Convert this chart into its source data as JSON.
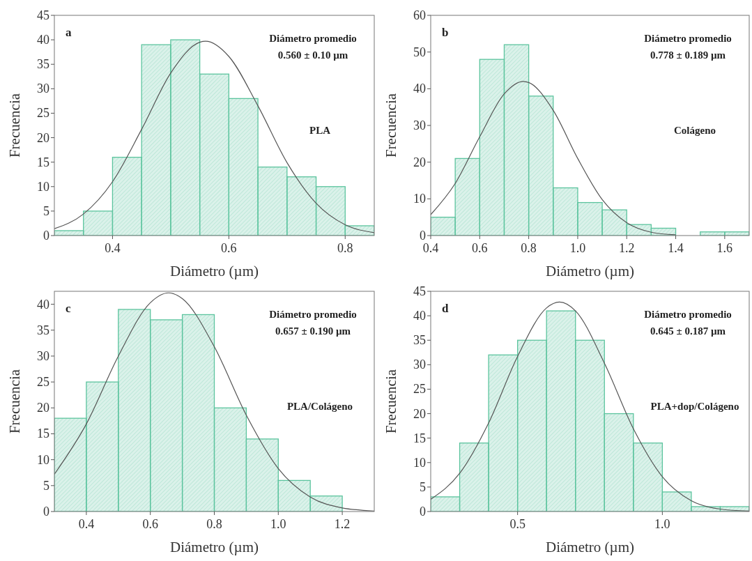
{
  "chart_data": [
    {
      "type": "histogram",
      "xlabel": "Diámetro (µm)",
      "ylabel": "Frecuencia",
      "color": "#5cc49e",
      "bins": [
        0.3,
        0.35,
        0.4,
        0.45,
        0.5,
        0.55,
        0.6,
        0.65,
        0.7,
        0.75,
        0.8,
        0.85
      ],
      "values": [
        1,
        5,
        16,
        39,
        40,
        33,
        28,
        14,
        12,
        10,
        2
      ],
      "xlim": [
        0.3,
        0.85
      ],
      "xticks": [
        0.4,
        0.6,
        0.8
      ],
      "ylim": [
        0,
        45
      ],
      "yticks": [
        0,
        5,
        10,
        15,
        20,
        25,
        30,
        35,
        40,
        45
      ],
      "annotations": [
        "a",
        "Diámetro promedio",
        "0.560 ± 0.10 µm",
        "PLA"
      ],
      "series": [
        {
          "type": "line",
          "color": "#555555",
          "x": [
            0.3,
            0.35,
            0.4,
            0.45,
            0.5,
            0.55,
            0.56,
            0.6,
            0.65,
            0.7,
            0.75,
            0.8,
            0.85
          ],
          "values": [
            1.4,
            4.4,
            11,
            21.7,
            33.2,
            39.5,
            39.7,
            36.6,
            26.5,
            14.9,
            6.6,
            2.2,
            0.6
          ]
        }
      ]
    },
    {
      "type": "histogram",
      "xlabel": "Diámetro (µm)",
      "ylabel": "Frecuencia",
      "color": "#5cc49e",
      "bins": [
        0.4,
        0.5,
        0.6,
        0.7,
        0.8,
        0.9,
        1.0,
        1.1,
        1.2,
        1.3,
        1.4,
        1.5,
        1.6,
        1.7
      ],
      "values": [
        5,
        21,
        48,
        52,
        38,
        13,
        9,
        7,
        3,
        2,
        0,
        1,
        1
      ],
      "xlim": [
        0.4,
        1.7
      ],
      "xticks": [
        {
          "value": 0.4,
          "label": "0.4"
        },
        {
          "value": 0.6,
          "label": "0.6"
        },
        {
          "value": 0.8,
          "label": "0.8"
        },
        {
          "value": 1.0,
          "label": "1.0"
        },
        {
          "value": 1.2,
          "label": "1.2"
        },
        {
          "value": 1.4,
          "label": "1.4"
        },
        {
          "value": 1.6,
          "label": "1.6"
        }
      ],
      "ylim": [
        0,
        60
      ],
      "yticks": [
        0,
        10,
        20,
        30,
        40,
        50,
        60
      ],
      "annotations": [
        "b",
        "Diámetro promedio",
        "0.778 ± 0.189 µm",
        "Colágeno"
      ],
      "series": [
        {
          "type": "line",
          "color": "#555555",
          "x": [
            0.4,
            0.5,
            0.6,
            0.7,
            0.778,
            0.8,
            0.9,
            1.0,
            1.1,
            1.2,
            1.3,
            1.4
          ],
          "values": [
            5.7,
            14.2,
            26.9,
            38.6,
            42,
            41.7,
            34.1,
            21,
            9.8,
            3.5,
            0.9,
            0.2
          ]
        }
      ]
    },
    {
      "type": "histogram",
      "xlabel": "Diámetro (µm)",
      "ylabel": "Frecuencia",
      "color": "#5cc49e",
      "bins": [
        0.3,
        0.4,
        0.5,
        0.6,
        0.7,
        0.8,
        0.9,
        1.0,
        1.1,
        1.2
      ],
      "values": [
        18,
        25,
        39,
        37,
        38,
        20,
        14,
        6,
        3
      ],
      "xlim": [
        0.3,
        1.3
      ],
      "xticks": [
        {
          "value": 0.4,
          "label": "0.4"
        },
        {
          "value": 0.6,
          "label": "0.6"
        },
        {
          "value": 0.8,
          "label": "0.8"
        },
        {
          "value": 1.0,
          "label": "1.0"
        },
        {
          "value": 1.2,
          "label": "1.2"
        }
      ],
      "ylim": [
        0,
        42.5
      ],
      "yticks": [
        0,
        5,
        10,
        15,
        20,
        25,
        30,
        35,
        40
      ],
      "annotations": [
        "c",
        "Diámetro promedio",
        "0.657 ± 0.190 µm",
        "PLA/Colágeno"
      ],
      "series": [
        {
          "type": "line",
          "color": "#555555",
          "x": [
            0.3,
            0.4,
            0.5,
            0.6,
            0.657,
            0.7,
            0.8,
            0.9,
            1.0,
            1.1,
            1.2,
            1.3
          ],
          "values": [
            7.2,
            16.9,
            30,
            40.3,
            42.2,
            41.1,
            31.8,
            18.6,
            8.3,
            2.8,
            0.7,
            0.1
          ]
        }
      ]
    },
    {
      "type": "histogram",
      "xlabel": "Diámetro (µm)",
      "ylabel": "Frecuencia",
      "color": "#5cc49e",
      "bins": [
        0.2,
        0.3,
        0.4,
        0.5,
        0.6,
        0.7,
        0.8,
        0.9,
        1.0,
        1.1,
        1.2,
        1.3
      ],
      "values": [
        3,
        14,
        32,
        35,
        41,
        35,
        20,
        14,
        4,
        1,
        1
      ],
      "xlim": [
        0.2,
        1.3
      ],
      "xticks": [
        0.5,
        {
          "value": 1.0,
          "label": "1.0"
        }
      ],
      "ylim": [
        0,
        45
      ],
      "yticks": [
        0,
        5,
        10,
        15,
        20,
        25,
        30,
        35,
        40,
        45
      ],
      "annotations": [
        "d",
        "Diámetro promedio",
        "0.645 ± 0.187 µm",
        "PLA+dop/Colágeno"
      ],
      "series": [
        {
          "type": "line",
          "color": "#555555",
          "x": [
            0.2,
            0.3,
            0.4,
            0.5,
            0.6,
            0.645,
            0.7,
            0.8,
            0.9,
            1.0,
            1.1,
            1.2,
            1.3
          ],
          "values": [
            2.5,
            7.8,
            18.1,
            31.7,
            41.6,
            42.8,
            41,
            30.3,
            16.9,
            7.1,
            2.2,
            0.5,
            0.1
          ]
        }
      ]
    }
  ]
}
